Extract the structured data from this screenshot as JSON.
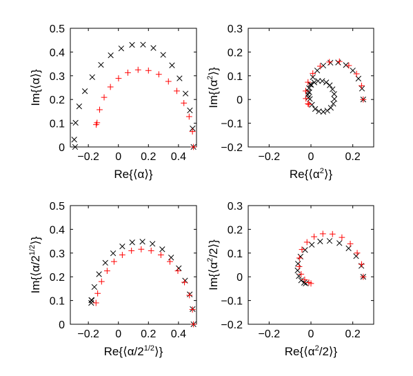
{
  "chart_data": [
    {
      "type": "scatter",
      "xlabel": "Re{⟨α⟩}",
      "ylabel": "Im{⟨α⟩}",
      "xlim": [
        -0.32,
        0.52
      ],
      "ylim": [
        0,
        0.5
      ],
      "xticks": [
        -0.2,
        0,
        0.2,
        0.4
      ],
      "xtick_labels": [
        "−0.2",
        "0",
        "0.2",
        "0.4"
      ],
      "yticks": [
        0,
        0.1,
        0.2,
        0.3,
        0.4,
        0.5
      ],
      "ytick_labels": [
        "0",
        "0.1",
        "0.2",
        "0.3",
        "0.4",
        "0.5"
      ],
      "grid": false,
      "series": [
        {
          "marker": "x",
          "color": "#000000",
          "points": [
            [
              0.5,
              0.0
            ],
            [
              0.494,
              0.078
            ],
            [
              0.476,
              0.154
            ],
            [
              0.447,
              0.225
            ],
            [
              0.407,
              0.289
            ],
            [
              0.357,
              0.344
            ],
            [
              0.298,
              0.388
            ],
            [
              0.233,
              0.417
            ],
            [
              0.164,
              0.431
            ],
            [
              0.091,
              0.43
            ],
            [
              0.019,
              0.415
            ],
            [
              -0.051,
              0.386
            ],
            [
              -0.116,
              0.346
            ],
            [
              -0.174,
              0.294
            ],
            [
              -0.223,
              0.235
            ],
            [
              -0.261,
              0.171
            ],
            [
              -0.285,
              0.102
            ],
            [
              -0.294,
              0.031
            ],
            [
              -0.288,
              0.0
            ]
          ]
        },
        {
          "marker": "+",
          "color": "#ff0000",
          "points": [
            [
              0.5,
              0.0
            ],
            [
              0.493,
              0.065
            ],
            [
              0.471,
              0.128
            ],
            [
              0.436,
              0.185
            ],
            [
              0.389,
              0.236
            ],
            [
              0.333,
              0.276
            ],
            [
              0.269,
              0.306
            ],
            [
              0.2,
              0.322
            ],
            [
              0.131,
              0.325
            ],
            [
              0.063,
              0.313
            ],
            [
              0.001,
              0.289
            ],
            [
              -0.053,
              0.253
            ],
            [
              -0.095,
              0.209
            ],
            [
              -0.125,
              0.157
            ],
            [
              -0.142,
              0.102
            ],
            [
              -0.148,
              0.094
            ]
          ]
        }
      ]
    },
    {
      "type": "scatter",
      "xlabel": "Re{⟨α²⟩}",
      "ylabel": "Im{⟨α²⟩}",
      "xlim": [
        -0.3,
        0.3
      ],
      "ylim": [
        -0.2,
        0.3
      ],
      "xticks": [
        -0.2,
        0,
        0.2
      ],
      "xtick_labels": [
        "−0.2",
        "0",
        "0.2"
      ],
      "yticks": [
        -0.2,
        -0.1,
        0,
        0.1,
        0.2,
        0.3
      ],
      "ytick_labels": [
        "−0.2",
        "−0.1",
        "0",
        "0.1",
        "0.2",
        "0.3"
      ],
      "grid": false,
      "series": [
        {
          "marker": "x",
          "color": "#000000",
          "points": [
            [
              0.25,
              0.0
            ],
            [
              0.244,
              0.046
            ],
            [
              0.227,
              0.088
            ],
            [
              0.2,
              0.122
            ],
            [
              0.167,
              0.145
            ],
            [
              0.13,
              0.156
            ],
            [
              0.093,
              0.155
            ],
            [
              0.059,
              0.143
            ],
            [
              0.03,
              0.122
            ],
            [
              0.009,
              0.094
            ],
            [
              -0.004,
              0.063
            ],
            [
              -0.008,
              0.031
            ],
            [
              -0.005,
              0.002
            ],
            [
              0.005,
              -0.022
            ],
            [
              0.02,
              -0.04
            ],
            [
              0.038,
              -0.05
            ],
            [
              0.059,
              -0.052
            ],
            [
              0.078,
              -0.047
            ],
            [
              0.095,
              -0.035
            ],
            [
              0.107,
              -0.018
            ],
            [
              0.112,
              0.002
            ],
            [
              0.111,
              0.023
            ],
            [
              0.103,
              0.043
            ],
            [
              0.09,
              0.06
            ],
            [
              0.073,
              0.072
            ],
            [
              0.054,
              0.078
            ],
            [
              0.034,
              0.078
            ],
            [
              0.016,
              0.072
            ],
            [
              0.001,
              0.062
            ],
            [
              -0.009,
              0.048
            ],
            [
              -0.014,
              0.034
            ],
            [
              -0.015,
              0.02
            ],
            [
              -0.012,
              0.008
            ]
          ]
        },
        {
          "marker": "+",
          "color": "#ff0000",
          "points": [
            [
              0.25,
              0.0
            ],
            [
              0.242,
              0.058
            ],
            [
              0.218,
              0.108
            ],
            [
              0.181,
              0.143
            ],
            [
              0.136,
              0.16
            ],
            [
              0.088,
              0.158
            ],
            [
              0.044,
              0.14
            ],
            [
              0.009,
              0.11
            ],
            [
              -0.014,
              0.073
            ],
            [
              -0.025,
              0.036
            ],
            [
              -0.024,
              0.004
            ],
            [
              -0.014,
              -0.018
            ],
            [
              -0.01,
              -0.02
            ]
          ]
        }
      ]
    },
    {
      "type": "scatter",
      "xlabel": "Re{⟨α/2^(1/2)⟩}",
      "ylabel": "Im{⟨α/2^(1/2)⟩}",
      "xlim": [
        -0.32,
        0.52
      ],
      "ylim": [
        0,
        0.5
      ],
      "xticks": [
        -0.2,
        0,
        0.2,
        0.4
      ],
      "xtick_labels": [
        "−0.2",
        "0",
        "0.2",
        "0.4"
      ],
      "yticks": [
        0,
        0.1,
        0.2,
        0.3,
        0.4,
        0.5
      ],
      "ytick_labels": [
        "0",
        "0.1",
        "0.2",
        "0.3",
        "0.4",
        "0.5"
      ],
      "grid": false,
      "series": [
        {
          "marker": "x",
          "color": "#000000",
          "points": [
            [
              0.5,
              0.0
            ],
            [
              0.494,
              0.064
            ],
            [
              0.475,
              0.126
            ],
            [
              0.444,
              0.184
            ],
            [
              0.402,
              0.236
            ],
            [
              0.351,
              0.281
            ],
            [
              0.292,
              0.316
            ],
            [
              0.227,
              0.339
            ],
            [
              0.16,
              0.348
            ],
            [
              0.092,
              0.345
            ],
            [
              0.026,
              0.328
            ],
            [
              -0.035,
              0.299
            ],
            [
              -0.087,
              0.259
            ],
            [
              -0.129,
              0.211
            ],
            [
              -0.16,
              0.157
            ],
            [
              -0.177,
              0.101
            ],
            [
              -0.181,
              0.09
            ],
            [
              -0.18,
              0.102
            ]
          ]
        },
        {
          "marker": "+",
          "color": "#ff0000",
          "points": [
            [
              0.5,
              0.0
            ],
            [
              0.493,
              0.062
            ],
            [
              0.473,
              0.122
            ],
            [
              0.44,
              0.177
            ],
            [
              0.396,
              0.225
            ],
            [
              0.343,
              0.264
            ],
            [
              0.283,
              0.292
            ],
            [
              0.218,
              0.31
            ],
            [
              0.152,
              0.316
            ],
            [
              0.087,
              0.31
            ],
            [
              0.026,
              0.292
            ],
            [
              -0.029,
              0.264
            ],
            [
              -0.075,
              0.225
            ],
            [
              -0.112,
              0.18
            ],
            [
              -0.138,
              0.13
            ],
            [
              -0.149,
              0.09
            ]
          ]
        }
      ]
    },
    {
      "type": "scatter",
      "xlabel": "Re{⟨α²/2⟩}",
      "ylabel": "Im{⟨α²/2⟩}",
      "xlim": [
        -0.3,
        0.3
      ],
      "ylim": [
        -0.2,
        0.3
      ],
      "xticks": [
        -0.2,
        0,
        0.2
      ],
      "xtick_labels": [
        "−0.2",
        "0",
        "0.2"
      ],
      "yticks": [
        -0.2,
        -0.1,
        0,
        0.1,
        0.2,
        0.3
      ],
      "ytick_labels": [
        "−0.2",
        "−0.1",
        "0",
        "0.1",
        "0.2",
        "0.3"
      ],
      "grid": false,
      "series": [
        {
          "marker": "x",
          "color": "#000000",
          "points": [
            [
              0.25,
              0.0
            ],
            [
              0.241,
              0.046
            ],
            [
              0.216,
              0.087
            ],
            [
              0.18,
              0.12
            ],
            [
              0.136,
              0.142
            ],
            [
              0.089,
              0.151
            ],
            [
              0.044,
              0.149
            ],
            [
              0.004,
              0.135
            ],
            [
              -0.028,
              0.113
            ],
            [
              -0.05,
              0.085
            ],
            [
              -0.062,
              0.055
            ],
            [
              -0.064,
              0.027
            ],
            [
              -0.058,
              0.003
            ],
            [
              -0.047,
              -0.015
            ],
            [
              -0.033,
              -0.025
            ],
            [
              -0.025,
              -0.028
            ]
          ]
        },
        {
          "marker": "+",
          "color": "#ff0000",
          "points": [
            [
              0.25,
              0.0
            ],
            [
              0.242,
              0.053
            ],
            [
              0.221,
              0.1
            ],
            [
              0.188,
              0.139
            ],
            [
              0.148,
              0.166
            ],
            [
              0.103,
              0.18
            ],
            [
              0.057,
              0.181
            ],
            [
              0.015,
              0.169
            ],
            [
              -0.019,
              0.146
            ],
            [
              -0.043,
              0.115
            ],
            [
              -0.055,
              0.079
            ],
            [
              -0.056,
              0.043
            ],
            [
              -0.047,
              0.011
            ],
            [
              -0.03,
              -0.012
            ],
            [
              -0.01,
              -0.024
            ],
            [
              0.0,
              -0.028
            ]
          ]
        }
      ]
    }
  ]
}
